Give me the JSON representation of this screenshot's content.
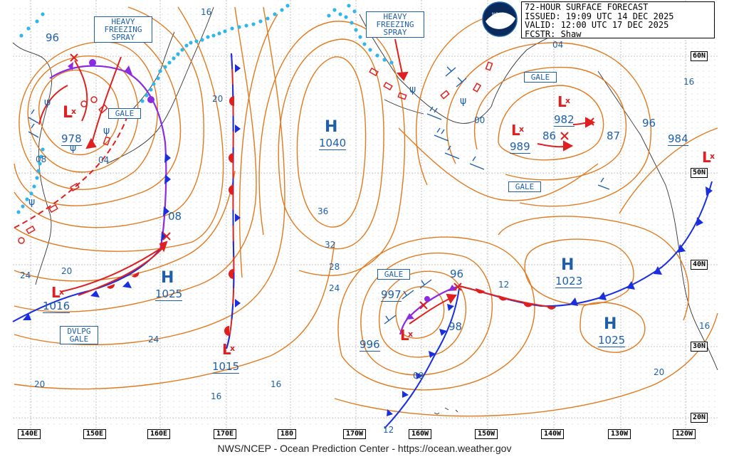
{
  "header": {
    "title": "72-HOUR SURFACE FORECAST",
    "issued": "ISSUED: 19:09 UTC 14 DEC 2025",
    "valid": "VALID:  12:00 UTC 17 DEC 2025",
    "forecaster": "FCSTR:  Shaw"
  },
  "footer": "NWS/NCEP - Ocean Prediction Center - https://ocean.weather.gov",
  "logo": "NOAA",
  "lon_labels": [
    "140E",
    "150E",
    "160E",
    "170E",
    "180",
    "170W",
    "160W",
    "150W",
    "140W",
    "130W",
    "120W"
  ],
  "lat_labels": [
    "60N",
    "50N",
    "40N",
    "30N",
    "20N"
  ],
  "highs": [
    {
      "id": "h1040",
      "label": "H",
      "pressure": "1040"
    },
    {
      "id": "h1025w",
      "label": "H",
      "pressure": "1025"
    },
    {
      "id": "h1023",
      "label": "H",
      "pressure": "1023"
    },
    {
      "id": "h1025e",
      "label": "H",
      "pressure": "1025"
    }
  ],
  "lows": [
    {
      "id": "l978",
      "pressure": "978"
    },
    {
      "id": "l1016",
      "pressure": "1016"
    },
    {
      "id": "l1015",
      "pressure": "1015"
    },
    {
      "id": "l989",
      "pressure": "989"
    },
    {
      "id": "l982",
      "pressure": "982"
    },
    {
      "id": "l996",
      "pressure": "996"
    },
    {
      "id": "l997",
      "pressure": "997"
    },
    {
      "id": "l984",
      "pressure": "984"
    }
  ],
  "isobar_labels": [
    "96",
    "16",
    "20",
    "08",
    "04",
    "08",
    "24",
    "20",
    "24",
    "36",
    "32",
    "28",
    "24",
    "16",
    "16",
    "20",
    "12",
    "08",
    "12",
    "96",
    "98",
    "00",
    "96",
    "87",
    "86",
    "04",
    "16",
    "16",
    "20"
  ],
  "warnings": {
    "heavy_freezing_spray_1": "HEAVY FREEZING SPRAY",
    "heavy_freezing_spray_2": "HEAVY FREEZING SPRAY",
    "gale_1": "GALE",
    "gale_2": "GALE",
    "gale_3": "GALE",
    "gale_4": "GALE",
    "dvlpg_gale": "DVLPG GALE"
  },
  "colors": {
    "isobar": "#e07a20",
    "label_blue": "#1f5fa8",
    "front_red": "#e02020",
    "front_blue": "#1a2ee0",
    "occluded": "#8a2be2",
    "ice": "#33b5e8",
    "grid": "#b5b5b5"
  }
}
